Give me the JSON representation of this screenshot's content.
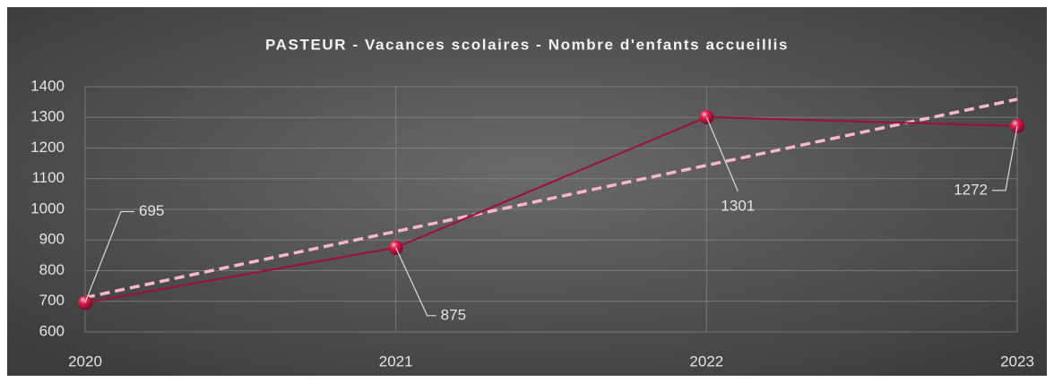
{
  "chart_data": {
    "type": "line",
    "title": "PASTEUR - Vacances scolaires - Nombre d'enfants accueillis",
    "x": [
      2020,
      2021,
      2022,
      2023
    ],
    "series": [
      {
        "name": "Nombre d'enfants accueillis",
        "color": "#9e0f3c",
        "values": [
          695,
          875,
          1301,
          1272
        ]
      }
    ],
    "trendline": {
      "type": "linear",
      "color": "#f7b7cc",
      "dashed": true
    },
    "xlim": [
      2020,
      2023
    ],
    "xticks": [
      2020,
      2021,
      2022,
      2023
    ],
    "ylim": [
      600,
      1400
    ],
    "yticks": [
      600,
      700,
      800,
      900,
      1000,
      1100,
      1200,
      1300,
      1400
    ],
    "grid": true,
    "data_labels": true
  }
}
